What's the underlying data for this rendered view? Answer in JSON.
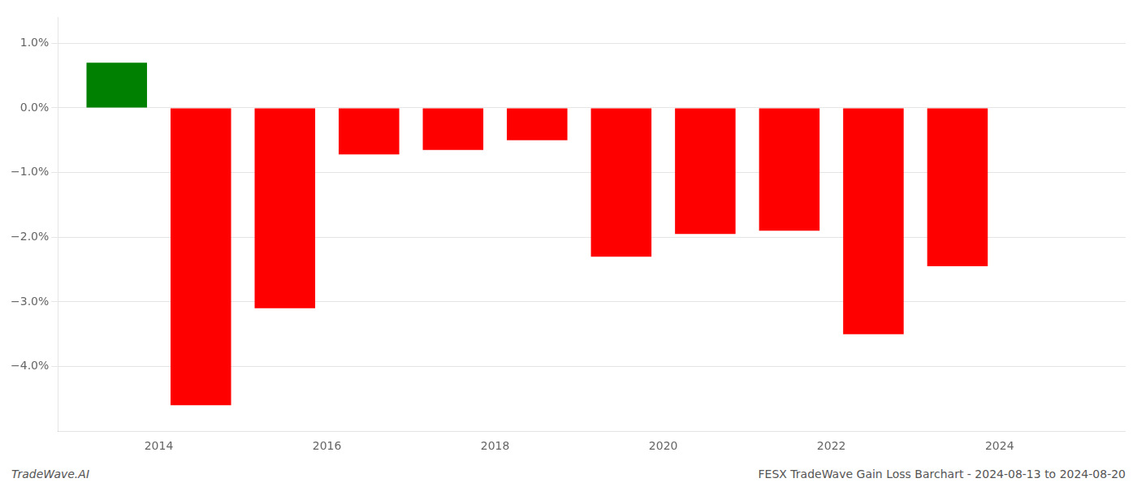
{
  "chart_data": {
    "type": "bar",
    "x": [
      2013.5,
      2014.5,
      2015.5,
      2016.5,
      2017.5,
      2018.5,
      2019.5,
      2020.5,
      2021.5,
      2022.5,
      2023.5
    ],
    "values": [
      0.007,
      -0.046,
      -0.031,
      -0.0072,
      -0.0065,
      -0.005,
      -0.023,
      -0.0195,
      -0.019,
      -0.035,
      -0.0245
    ],
    "colors": [
      "#008000",
      "#ff0000",
      "#ff0000",
      "#ff0000",
      "#ff0000",
      "#ff0000",
      "#ff0000",
      "#ff0000",
      "#ff0000",
      "#ff0000",
      "#ff0000"
    ],
    "xlim": [
      2012.8,
      2025.5
    ],
    "xticks": [
      2014,
      2016,
      2018,
      2020,
      2022,
      2024
    ],
    "ylim": [
      -0.05,
      0.014
    ],
    "yticks": [
      {
        "value": 0.01,
        "label": "1.0%"
      },
      {
        "value": 0.0,
        "label": "0.0%"
      },
      {
        "value": -0.01,
        "label": "−1.0%"
      },
      {
        "value": -0.02,
        "label": "−2.0%"
      },
      {
        "value": -0.03,
        "label": "−3.0%"
      },
      {
        "value": -0.04,
        "label": "−4.0%"
      }
    ],
    "grid": "y",
    "annotations": [
      "TradeWave.AI",
      "FESX TradeWave Gain Loss Barchart - 2024-08-13 to 2024-08-20"
    ]
  }
}
